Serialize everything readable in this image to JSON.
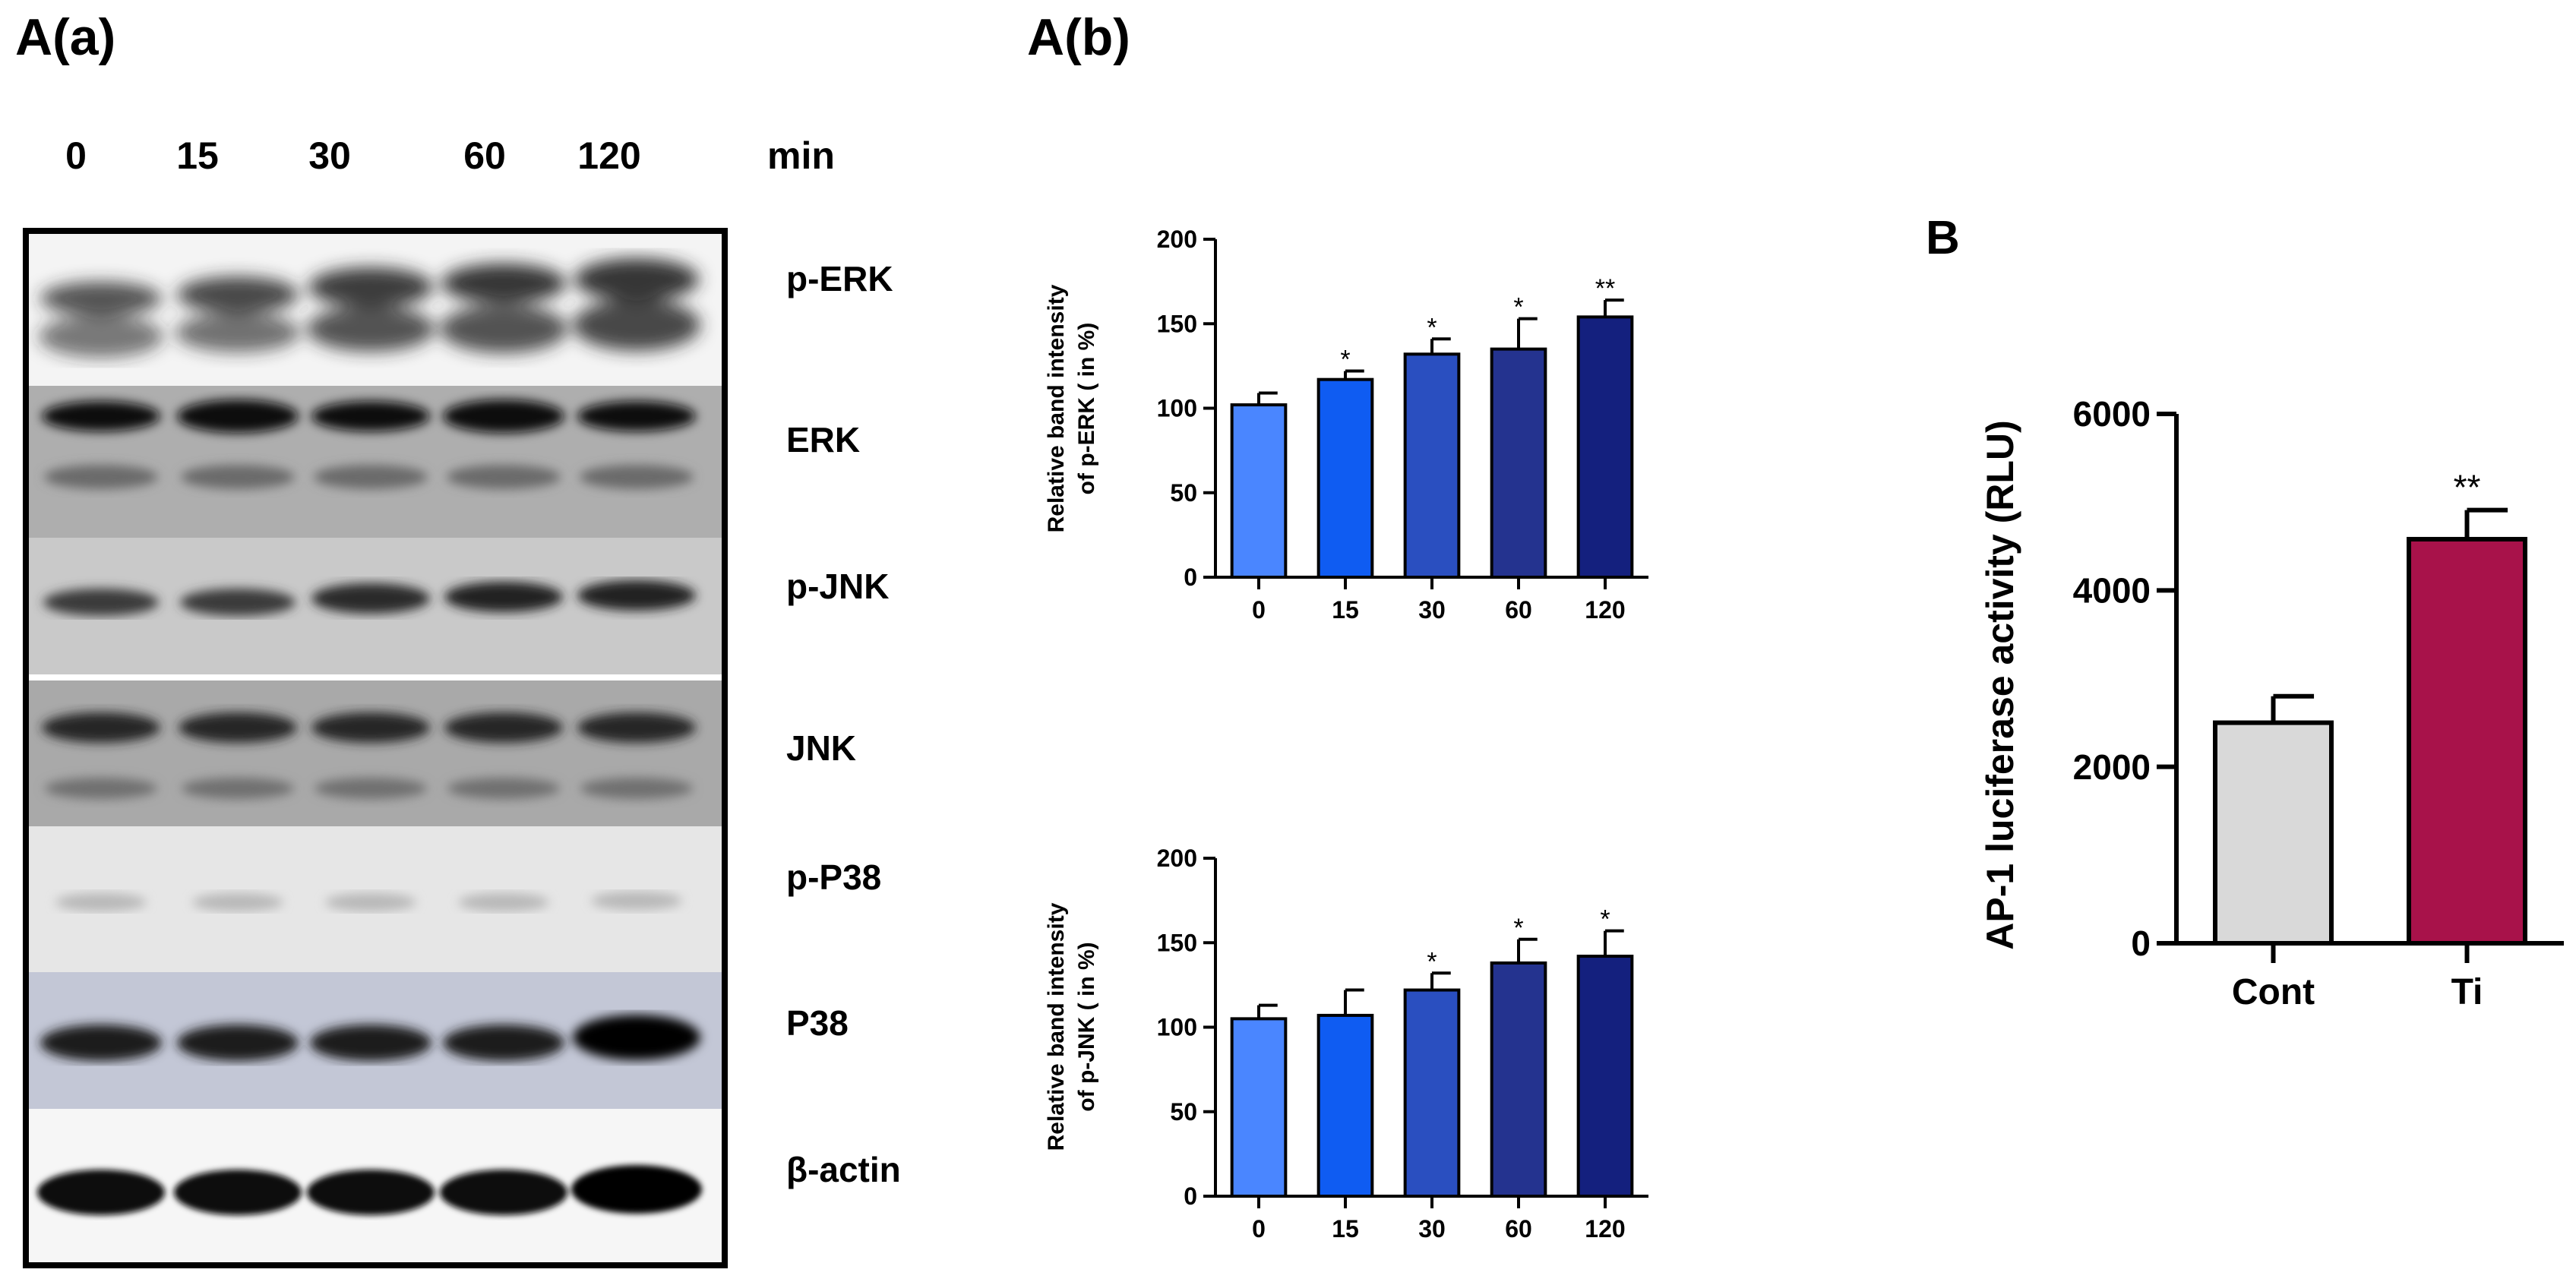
{
  "panel_a": {
    "label_a": "A(a)",
    "label_b": "A(b)",
    "time_points": [
      "0",
      "15",
      "30",
      "60",
      "120"
    ],
    "time_unit": "min",
    "proteins": [
      "p-ERK",
      "ERK",
      "p-JNK",
      "JNK",
      "p-P38",
      "P38",
      "β-actin"
    ]
  },
  "panel_b": {
    "label": "B"
  },
  "chart_data": [
    {
      "type": "bar",
      "categories": [
        "0",
        "15",
        "30",
        "60",
        "120"
      ],
      "values": [
        102,
        117,
        132,
        135,
        154
      ],
      "errors": [
        7,
        5,
        9,
        18,
        10
      ],
      "significance": [
        "",
        "*",
        "*",
        "*",
        "**"
      ],
      "ylabel_line1": "Relative band intensity",
      "ylabel_line2": "of p-ERK ( in %)",
      "ylim": [
        0,
        200
      ],
      "yticks": [
        0,
        50,
        100,
        150,
        200
      ],
      "colors": [
        "#4a86ff",
        "#0f5cf2",
        "#2a4fc0",
        "#24338f",
        "#14207e"
      ]
    },
    {
      "type": "bar",
      "categories": [
        "0",
        "15",
        "30",
        "60",
        "120"
      ],
      "values": [
        105,
        107,
        122,
        138,
        142
      ],
      "errors": [
        8,
        15,
        10,
        14,
        15
      ],
      "significance": [
        "",
        "",
        "*",
        "*",
        "*"
      ],
      "ylabel_line1": "Relative band intensity",
      "ylabel_line2": "of p-JNK ( in %)",
      "ylim": [
        0,
        200
      ],
      "yticks": [
        0,
        50,
        100,
        150,
        200
      ],
      "colors": [
        "#4a86ff",
        "#0f5cf2",
        "#2a4fc0",
        "#24338f",
        "#14207e"
      ]
    },
    {
      "type": "bar",
      "categories": [
        "Cont",
        "Ti"
      ],
      "values": [
        2500,
        4580
      ],
      "errors": [
        300,
        330
      ],
      "significance": [
        "",
        "**"
      ],
      "ylabel": "AP-1 luciferase activity  (RLU)",
      "ylim": [
        0,
        6000
      ],
      "yticks": [
        0,
        2000,
        4000,
        6000
      ],
      "colors": [
        "#d9d9d9",
        "#a8124a"
      ]
    }
  ]
}
